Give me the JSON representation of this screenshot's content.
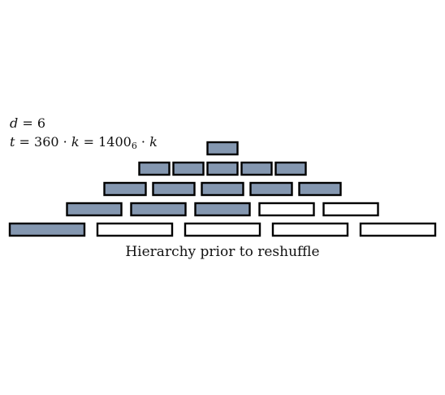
{
  "labels": {
    "d_var": "d",
    "d_eq": " = ",
    "d_val": "6",
    "t_var": "t",
    "t_part1": " = 360 · ",
    "t_k1": "k",
    "t_part2": " = 1400",
    "t_base": "6",
    "t_part3": " · ",
    "t_k2": "k"
  },
  "caption": "Hierarchy prior to reshuffle",
  "colors": {
    "filled": "#8497b0",
    "empty": "#ffffff",
    "stroke": "#000000"
  },
  "levels": [
    {
      "blocks": 1,
      "filled": 1
    },
    {
      "blocks": 5,
      "filled": 5
    },
    {
      "blocks": 5,
      "filled": 5
    },
    {
      "blocks": 5,
      "filled": 3
    },
    {
      "blocks": 5,
      "filled": 1
    }
  ]
}
